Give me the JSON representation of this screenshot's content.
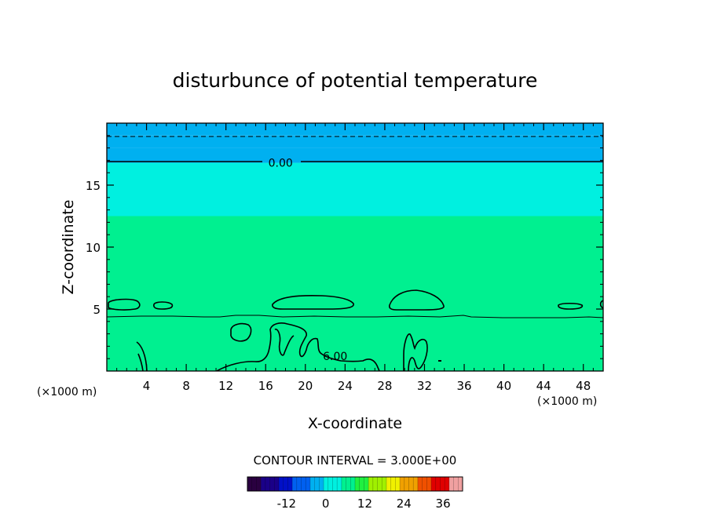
{
  "chart_data": {
    "type": "heatmap",
    "title": "disturbunce of potential temperature",
    "xlabel": "X-coordinate",
    "ylabel": "Z-coordinate",
    "x_unit": "(×1000 m)",
    "x_unit_right": "(×1000 m)",
    "xlim": [
      0,
      50
    ],
    "ylim": [
      0,
      20
    ],
    "x_ticks": [
      "4",
      "8",
      "12",
      "16",
      "20",
      "24",
      "28",
      "32",
      "36",
      "40",
      "44",
      "48"
    ],
    "y_ticks": [
      "5",
      "10",
      "15"
    ],
    "x_tick_values": [
      4,
      8,
      12,
      16,
      20,
      24,
      28,
      32,
      36,
      40,
      44,
      48
    ],
    "y_tick_values": [
      5,
      10,
      15
    ],
    "contour_interval_text": "CONTOUR INTERVAL = 3.000E+00",
    "contour_labels": [
      {
        "text": "0.00",
        "x": 17.5,
        "z": 16.8
      },
      {
        "text": "6.00",
        "x": 23.0,
        "z": 1.2
      }
    ],
    "value_bands": [
      {
        "z_from": 0,
        "z_to": 4.4,
        "value": 7.5
      },
      {
        "z_from": 4.4,
        "z_to": 12.5,
        "value": 4.5
      },
      {
        "z_from": 12.5,
        "z_to": 16.8,
        "value": 1.5
      },
      {
        "z_from": 16.8,
        "z_to": 18.0,
        "value": -1.5
      },
      {
        "z_from": 18.0,
        "z_to": 19.0,
        "value": -3.5
      },
      {
        "z_from": 19.0,
        "z_to": 20.0,
        "value": -5.0
      }
    ],
    "colorbar": {
      "min": -24,
      "max": 42,
      "tick_labels": [
        "-12",
        "0",
        "12",
        "24",
        "36"
      ],
      "tick_values": [
        -12,
        0,
        12,
        24,
        36
      ],
      "colors": [
        "#2a0040",
        "#1a0088",
        "#0010c8",
        "#0060f0",
        "#00b0f0",
        "#00f0e0",
        "#00f090",
        "#20f040",
        "#a0f000",
        "#f0f000",
        "#f0a000",
        "#f05000",
        "#e00000",
        "#f0a0a0"
      ]
    }
  }
}
